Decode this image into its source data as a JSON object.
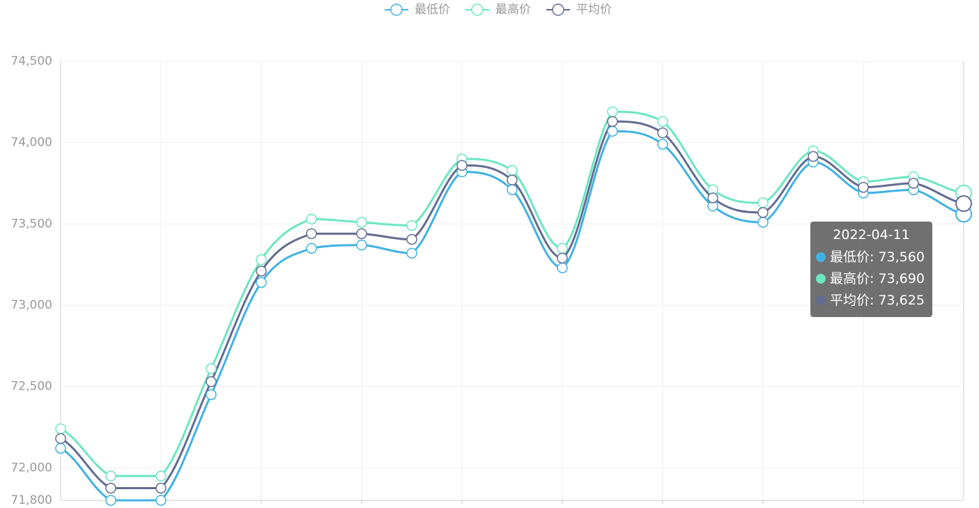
{
  "chart_data": {
    "type": "line",
    "categories": [
      null,
      null,
      null,
      null,
      null,
      null,
      null,
      null,
      null,
      null,
      null,
      null,
      null,
      null,
      null,
      null,
      null,
      null,
      "2022-04-11"
    ],
    "series": [
      {
        "name": "最低价",
        "color": "#3fb1e3",
        "values": [
          72120,
          71800,
          71800,
          72450,
          73140,
          73350,
          73370,
          73320,
          73820,
          73710,
          73230,
          74070,
          73990,
          73610,
          73510,
          73880,
          73690,
          73710,
          73560
        ],
        "value_labels": [
          null,
          null,
          null,
          null,
          null,
          null,
          null,
          null,
          null,
          null,
          null,
          null,
          null,
          null,
          null,
          null,
          null,
          null,
          "73,560"
        ]
      },
      {
        "name": "最高价",
        "color": "#6be6c1",
        "values": [
          72240,
          71950,
          71950,
          72610,
          73280,
          73530,
          73510,
          73490,
          73900,
          73830,
          73350,
          74190,
          74130,
          73710,
          73630,
          73950,
          73760,
          73790,
          73690
        ],
        "value_labels": [
          null,
          null,
          null,
          null,
          null,
          null,
          null,
          null,
          null,
          null,
          null,
          null,
          null,
          null,
          null,
          null,
          null,
          null,
          "73,690"
        ]
      },
      {
        "name": "平均价",
        "color": "#626c91",
        "values": [
          72180,
          71875,
          71875,
          72530,
          73210,
          73440,
          73440,
          73405,
          73860,
          73770,
          73290,
          74130,
          74060,
          73660,
          73570,
          73915,
          73725,
          73750,
          73625
        ],
        "value_labels": [
          null,
          null,
          null,
          null,
          null,
          null,
          null,
          null,
          null,
          null,
          null,
          null,
          null,
          null,
          null,
          null,
          null,
          null,
          "73,625"
        ]
      }
    ],
    "ylim": [
      71800,
      74500
    ],
    "yticks": [
      {
        "value": 71800,
        "label": "71,800"
      },
      {
        "value": 72000,
        "label": "72,000"
      },
      {
        "value": 72500,
        "label": "72,500"
      },
      {
        "value": 73000,
        "label": "73,000"
      },
      {
        "value": 73500,
        "label": "73,500"
      },
      {
        "value": 74000,
        "label": "74,000"
      },
      {
        "value": 74500,
        "label": "74,500"
      }
    ],
    "grid": true,
    "smooth": true,
    "legend": "top",
    "tooltip": {
      "index": 18,
      "separator": ": "
    }
  }
}
